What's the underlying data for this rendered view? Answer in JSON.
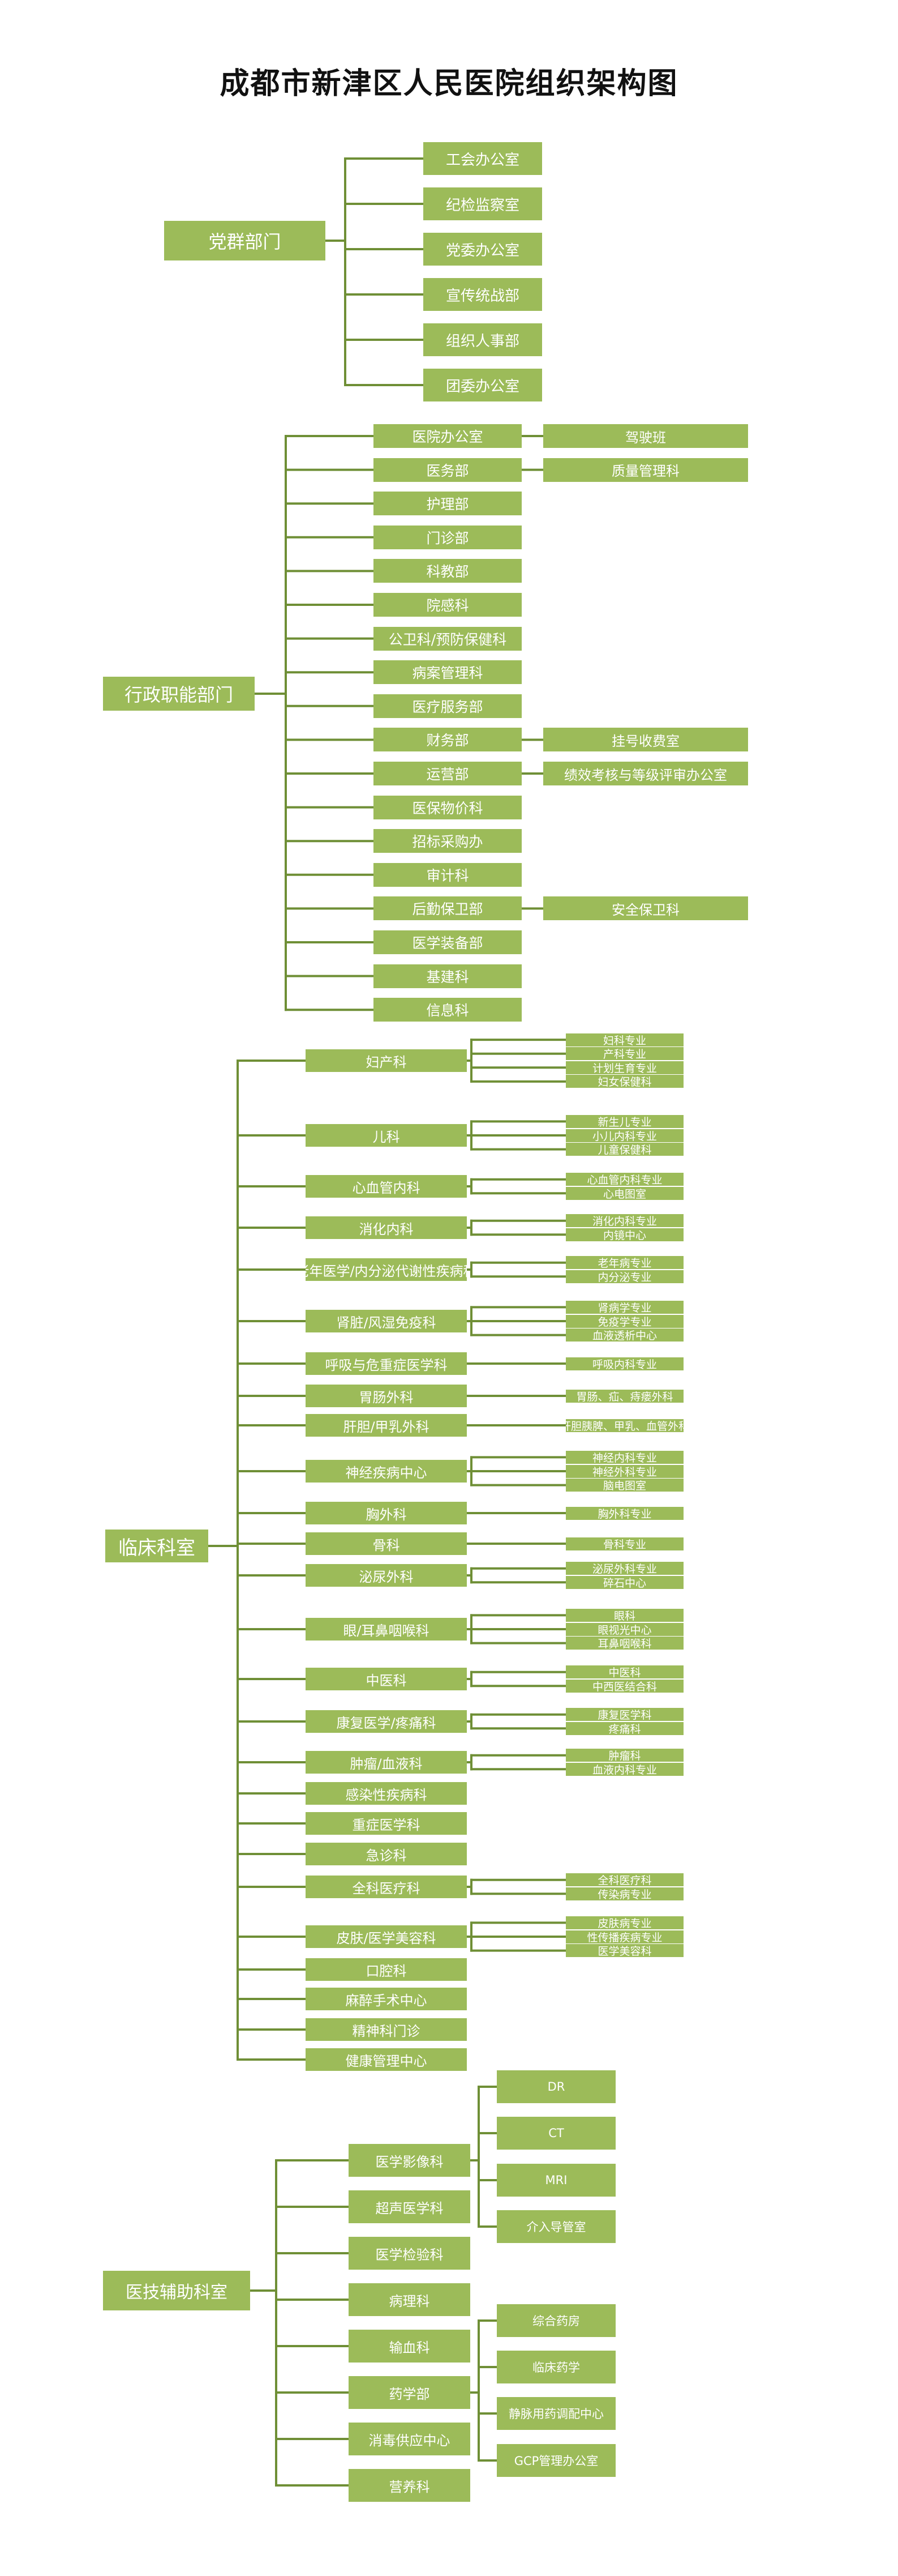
{
  "title": "成都市新津区人民医院组织架构图",
  "colors": {
    "box": "#9cbb59",
    "text": "#ffffff",
    "line": "#6f8f36"
  },
  "sections": [
    {
      "name": "党群部门",
      "items": [
        {
          "name": "工会办公室"
        },
        {
          "name": "纪检监察室"
        },
        {
          "name": "党委办公室"
        },
        {
          "name": "宣传统战部"
        },
        {
          "name": "组织人事部"
        },
        {
          "name": "团委办公室"
        }
      ]
    },
    {
      "name": "行政职能部门",
      "items": [
        {
          "name": "医院办公室",
          "children": [
            "驾驶班"
          ]
        },
        {
          "name": "医务部",
          "children": [
            "质量管理科"
          ]
        },
        {
          "name": "护理部"
        },
        {
          "name": "门诊部"
        },
        {
          "name": "科教部"
        },
        {
          "name": "院感科"
        },
        {
          "name": "公卫科/预防保健科"
        },
        {
          "name": "病案管理科"
        },
        {
          "name": "医疗服务部"
        },
        {
          "name": "财务部",
          "children": [
            "挂号收费室"
          ]
        },
        {
          "name": "运营部",
          "children": [
            "绩效考核与等级评审办公室"
          ]
        },
        {
          "name": "医保物价科"
        },
        {
          "name": "招标采购办"
        },
        {
          "name": "审计科"
        },
        {
          "name": "后勤保卫部",
          "children": [
            "安全保卫科"
          ]
        },
        {
          "name": "医学装备部"
        },
        {
          "name": "基建科"
        },
        {
          "name": "信息科"
        }
      ]
    },
    {
      "name": "临床科室",
      "items": [
        {
          "name": "妇产科",
          "children": [
            "妇科专业",
            "产科专业",
            "计划生育专业",
            "妇女保健科"
          ]
        },
        {
          "name": "儿科",
          "children": [
            "新生儿专业",
            "小儿内科专业",
            "儿童保健科"
          ]
        },
        {
          "name": "心血管内科",
          "children": [
            "心血管内科专业",
            "心电图室"
          ]
        },
        {
          "name": "消化内科",
          "children": [
            "消化内科专业",
            "内镜中心"
          ]
        },
        {
          "name": "老年医学/内分泌代谢性疾病科",
          "children": [
            "老年病专业",
            "内分泌专业"
          ]
        },
        {
          "name": "肾脏/风湿免疫科",
          "children": [
            "肾病学专业",
            "免疫学专业",
            "血液透析中心"
          ]
        },
        {
          "name": "呼吸与危重症医学科",
          "children": [
            "呼吸内科专业"
          ]
        },
        {
          "name": "胃肠外科",
          "children": [
            "胃肠、疝、痔瘘外科"
          ]
        },
        {
          "name": "肝胆/甲乳外科",
          "children": [
            "肝胆胰脾、甲乳、血管外科"
          ]
        },
        {
          "name": "神经疾病中心",
          "children": [
            "神经内科专业",
            "神经外科专业",
            "脑电图室"
          ]
        },
        {
          "name": "胸外科",
          "children": [
            "胸外科专业"
          ]
        },
        {
          "name": "骨科",
          "children": [
            "骨科专业"
          ]
        },
        {
          "name": "泌尿外科",
          "children": [
            "泌尿外科专业",
            "碎石中心"
          ]
        },
        {
          "name": "眼/耳鼻咽喉科",
          "children": [
            "眼科",
            "眼视光中心",
            "耳鼻咽喉科"
          ]
        },
        {
          "name": "中医科",
          "children": [
            "中医科",
            "中西医结合科"
          ]
        },
        {
          "name": "康复医学/疼痛科",
          "children": [
            "康复医学科",
            "疼痛科"
          ]
        },
        {
          "name": "肿瘤/血液科",
          "children": [
            "肿瘤科",
            "血液内科专业"
          ]
        },
        {
          "name": "感染性疾病科"
        },
        {
          "name": "重症医学科"
        },
        {
          "name": "急诊科"
        },
        {
          "name": "全科医疗科",
          "children": [
            "全科医疗科",
            "传染病专业"
          ]
        },
        {
          "name": "皮肤/医学美容科",
          "children": [
            "皮肤病专业",
            "性传播疾病专业",
            "医学美容科"
          ]
        },
        {
          "name": "口腔科"
        },
        {
          "name": "麻醉手术中心"
        },
        {
          "name": "精神科门诊"
        },
        {
          "name": "健康管理中心"
        }
      ]
    },
    {
      "name": "医技辅助科室",
      "items": [
        {
          "name": "医学影像科",
          "children": [
            "DR",
            "CT",
            "MRI",
            "介入导管室"
          ]
        },
        {
          "name": "超声医学科"
        },
        {
          "name": "医学检验科"
        },
        {
          "name": "病理科"
        },
        {
          "name": "输血科"
        },
        {
          "name": "药学部",
          "children": [
            "综合药房",
            "临床药学",
            "静脉用药调配中心",
            "GCP管理办公室"
          ]
        },
        {
          "name": "消毒供应中心"
        },
        {
          "name": "营养科"
        }
      ]
    }
  ]
}
